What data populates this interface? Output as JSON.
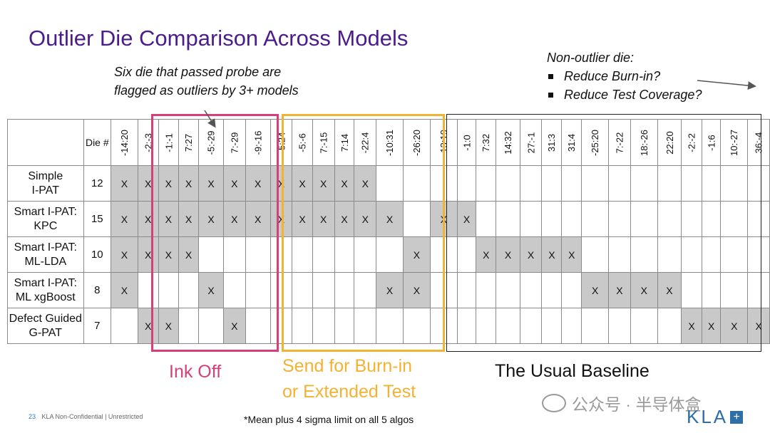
{
  "title": "Outlier Die Comparison Across Models",
  "callout_left": [
    "Six die that passed probe are",
    "flagged as outliers by 3+ models"
  ],
  "callout_right": {
    "heading": "Non-outlier die:",
    "bullets": [
      "Reduce Burn-in?",
      "Reduce Test Coverage?"
    ]
  },
  "table": {
    "die_header": "Die #",
    "die_ids": [
      "-14:20",
      "-2:-3",
      "-1:-1",
      "7:27",
      "-5:-29",
      "7:-29",
      "-9:-16",
      "-5:24",
      "-5:-6",
      "7:-15",
      "7:14",
      "-22:4",
      "-10:31",
      "-26:20",
      "-13:19",
      "-1:0",
      "7:32",
      "14:32",
      "27:-1",
      "31:3",
      "31:4",
      "-25:20",
      "7:-22",
      "18:-26",
      "22:20",
      "-2:-2",
      "-1:6",
      "10:-27",
      "36:-4"
    ],
    "mark": "X",
    "rows": [
      {
        "label": [
          "Simple",
          "I-PAT"
        ],
        "count": "12",
        "marks": [
          1,
          1,
          1,
          1,
          1,
          1,
          1,
          1,
          1,
          1,
          1,
          1,
          0,
          0,
          0,
          0,
          0,
          0,
          0,
          0,
          0,
          0,
          0,
          0,
          0,
          0,
          0,
          0,
          0
        ]
      },
      {
        "label": [
          "Smart I-PAT:",
          "KPC"
        ],
        "count": "15",
        "marks": [
          1,
          1,
          1,
          1,
          1,
          1,
          1,
          1,
          1,
          1,
          1,
          1,
          1,
          0,
          1,
          1,
          0,
          0,
          0,
          0,
          0,
          0,
          0,
          0,
          0,
          0,
          0,
          0,
          0
        ]
      },
      {
        "label": [
          "Smart I-PAT:",
          "ML-LDA"
        ],
        "count": "10",
        "marks": [
          1,
          1,
          1,
          1,
          0,
          0,
          0,
          0,
          0,
          0,
          0,
          0,
          0,
          1,
          0,
          0,
          1,
          1,
          1,
          1,
          1,
          0,
          0,
          0,
          0,
          0,
          0,
          0,
          0
        ]
      },
      {
        "label": [
          "Smart I-PAT:",
          "ML xgBoost"
        ],
        "count": "8",
        "marks": [
          1,
          0,
          0,
          0,
          1,
          0,
          0,
          0,
          0,
          0,
          0,
          0,
          1,
          1,
          0,
          0,
          0,
          0,
          0,
          0,
          0,
          1,
          1,
          1,
          1,
          0,
          0,
          0,
          0
        ]
      },
      {
        "label": [
          "Defect Guided",
          "G-PAT"
        ],
        "count": "7",
        "marks": [
          0,
          1,
          1,
          0,
          0,
          1,
          0,
          0,
          0,
          0,
          0,
          0,
          0,
          0,
          0,
          0,
          0,
          0,
          0,
          0,
          0,
          0,
          0,
          0,
          0,
          1,
          1,
          1,
          1
        ]
      }
    ]
  },
  "groups": {
    "ink_off": "Ink Off",
    "burn_in": [
      "Send for Burn-in",
      "or Extended Test"
    ],
    "baseline": "The Usual Baseline"
  },
  "colors": {
    "title": "#4b1c8c",
    "ink_off": "#d6407a",
    "burn_in": "#f2b233",
    "marked_cell": "#c9c9c9",
    "logo": "#2e6fa8"
  },
  "footer": {
    "page_number": "23",
    "classification": "KLA Non-Confidential | Unrestricted",
    "footnote": "*Mean plus 4 sigma limit on all 5 algos"
  },
  "watermark": "公众号 · 半导体盒",
  "logo": {
    "text": "KLA",
    "icon": "plus-icon"
  }
}
